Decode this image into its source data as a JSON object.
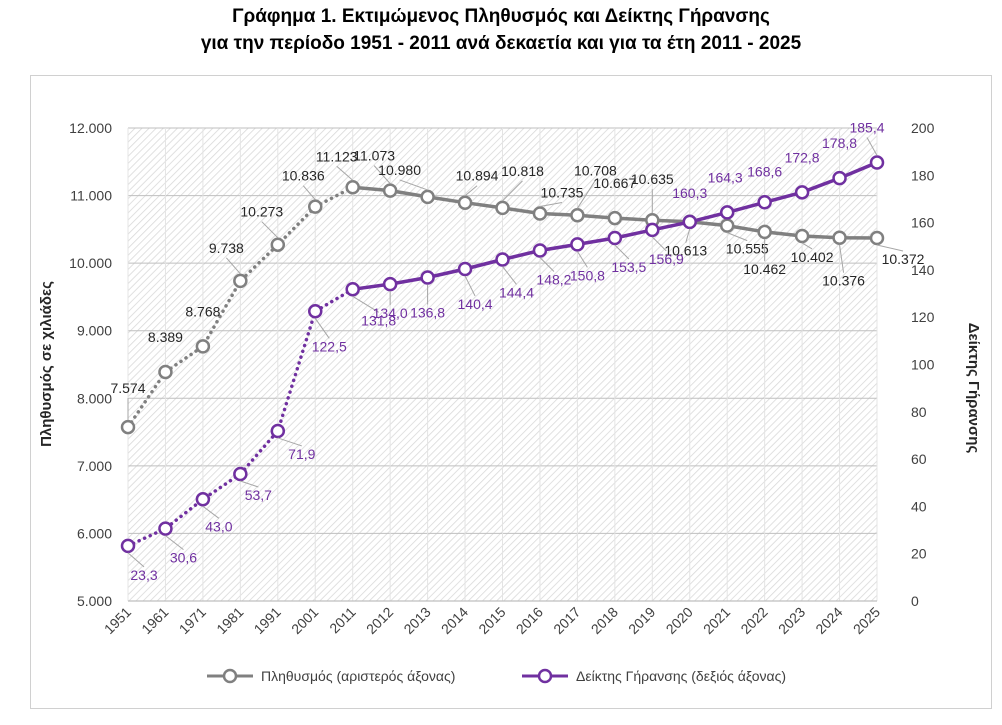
{
  "title_line_1": "Γράφημα 1. Εκτιμώμενος Πληθυσμός και Δείκτης Γήρανσης",
  "title_line_2": "για την περίοδο 1951 - 2011 ανά δεκαετία και για τα έτη 2011 - 2025",
  "chart_data": {
    "type": "line",
    "categories": [
      "1951",
      "1961",
      "1971",
      "1981",
      "1991",
      "2001",
      "2011",
      "2012",
      "2013",
      "2014",
      "2015",
      "2016",
      "2017",
      "2018",
      "2019",
      "2020",
      "2021",
      "2022",
      "2023",
      "2024",
      "2025"
    ],
    "ylabel": "Πληθυσμός σε χιλιάδες",
    "y2label": "Δείκτης Γήρανσης",
    "ylim": [
      5000,
      12000
    ],
    "y2lim": [
      0,
      200
    ],
    "yticks": [
      5000,
      6000,
      7000,
      8000,
      9000,
      10000,
      11000,
      12000
    ],
    "yticklabels": [
      "5.000",
      "6.000",
      "7.000",
      "8.000",
      "9.000",
      "10.000",
      "11.000",
      "12.000"
    ],
    "y2ticks": [
      0,
      20,
      40,
      60,
      80,
      100,
      120,
      140,
      160,
      180,
      200
    ],
    "y2ticklabels": [
      "0",
      "20",
      "40",
      "60",
      "80",
      "100",
      "120",
      "140",
      "160",
      "180",
      "200"
    ],
    "legend_position": "bottom",
    "series": [
      {
        "name": "Πληθυσμός (αριστερός άξονας)",
        "axis": "left",
        "color": "#808080",
        "values": [
          7574,
          8389,
          8768,
          9738,
          10273,
          10836,
          11123,
          11073,
          10980,
          10894,
          10818,
          10735,
          10708,
          10667,
          10635,
          10613,
          10555,
          10462,
          10402,
          10376,
          10372
        ],
        "labels": [
          "7.574",
          "8.389",
          "8.768",
          "9.738",
          "10.273",
          "10.836",
          "11.123",
          "11.073",
          "10.980",
          "10.894",
          "10.818",
          "10.735",
          "10.708",
          "10.667",
          "10.635",
          "10.613",
          "10.555",
          "10.462",
          "10.402",
          "10.376",
          "10.372"
        ]
      },
      {
        "name": "Δείκτης Γήρανσης (δεξιός άξονας)",
        "axis": "right",
        "color": "#7030A0",
        "values": [
          23.3,
          30.6,
          43.0,
          53.7,
          71.9,
          122.5,
          131.8,
          134.0,
          136.8,
          140.4,
          144.4,
          148.2,
          150.8,
          153.5,
          156.9,
          160.3,
          164.3,
          168.6,
          172.8,
          178.8,
          185.4
        ],
        "labels": [
          "23,3",
          "30,6",
          "43,0",
          "53,7",
          "71,9",
          "122,5",
          "131,8",
          "134,0",
          "136,8",
          "140,4",
          "144,4",
          "148,2",
          "150,8",
          "153,5",
          "156,9",
          "160,3",
          "164,3",
          "168,6",
          "172,8",
          "178,8",
          "185,4"
        ]
      }
    ]
  }
}
